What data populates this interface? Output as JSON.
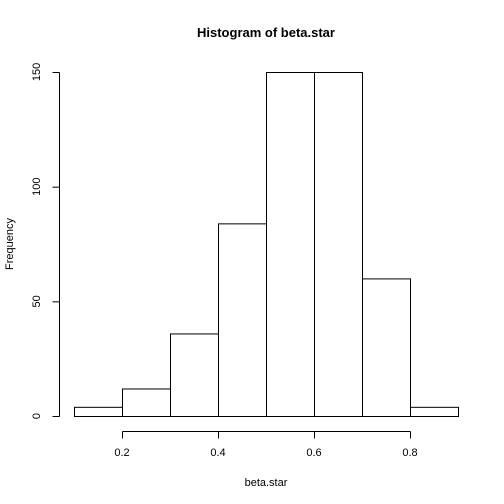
{
  "chart_data": {
    "type": "bar",
    "title": "Histogram of beta.star",
    "xlabel": "beta.star",
    "ylabel": "Frequency",
    "bins": [
      {
        "x0": 0.1,
        "x1": 0.2,
        "count": 4
      },
      {
        "x0": 0.2,
        "x1": 0.3,
        "count": 12
      },
      {
        "x0": 0.3,
        "x1": 0.4,
        "count": 36
      },
      {
        "x0": 0.4,
        "x1": 0.5,
        "count": 84
      },
      {
        "x0": 0.5,
        "x1": 0.6,
        "count": 150
      },
      {
        "x0": 0.6,
        "x1": 0.7,
        "count": 150
      },
      {
        "x0": 0.7,
        "x1": 0.8,
        "count": 60
      },
      {
        "x0": 0.8,
        "x1": 0.9,
        "count": 4
      }
    ],
    "xticks": [
      "0.2",
      "0.4",
      "0.6",
      "0.8"
    ],
    "yticks": [
      "0",
      "50",
      "100",
      "150"
    ],
    "xlim": [
      0.1,
      0.9
    ],
    "ylim": [
      0,
      150
    ],
    "grid": false
  }
}
